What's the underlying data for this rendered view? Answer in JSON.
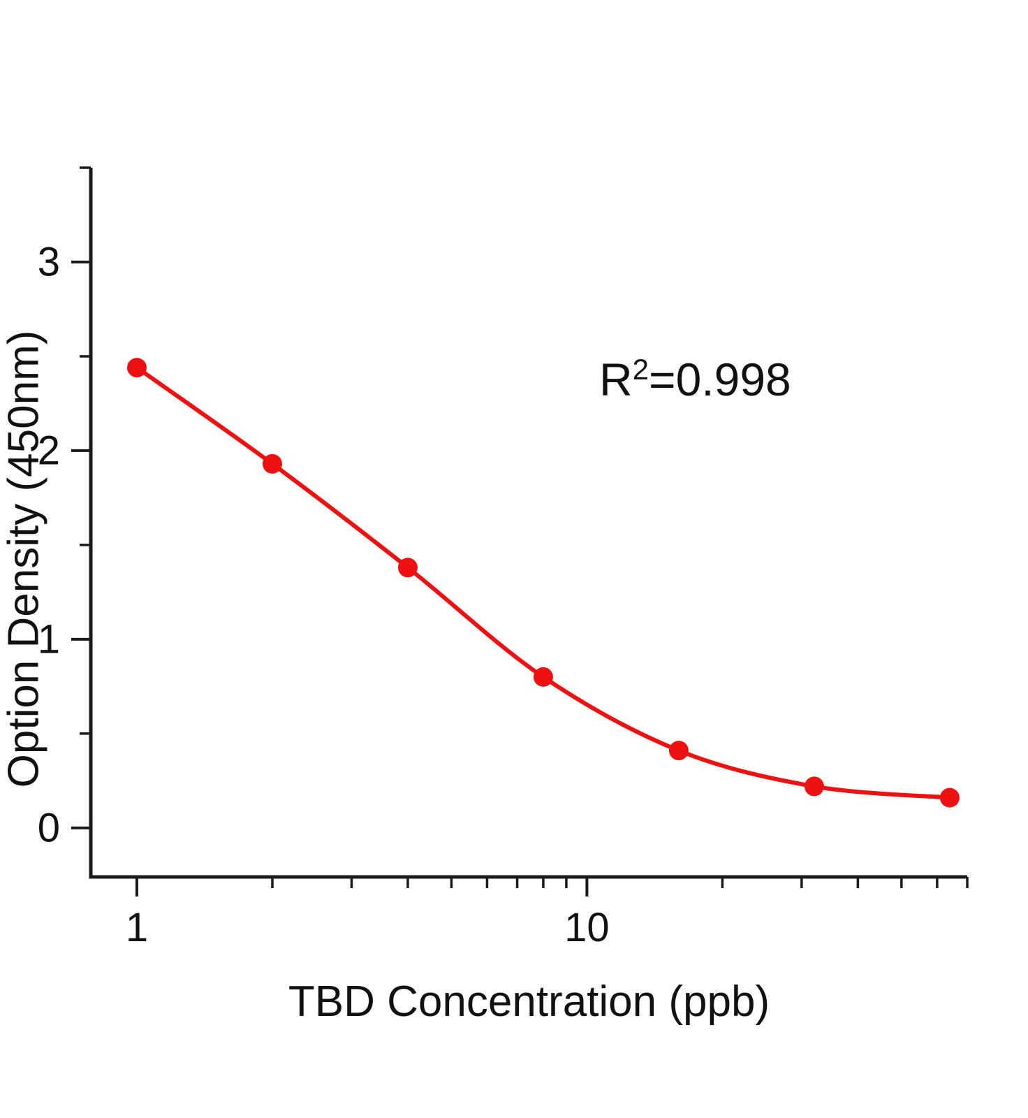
{
  "chart_data": {
    "type": "scatter",
    "title": "",
    "xlabel": "TBD Concentration  (ppb)",
    "ylabel": "Option Density  (450nm)",
    "xscale": "log",
    "grid": false,
    "x": [
      1,
      2,
      4,
      8,
      16,
      32,
      64
    ],
    "y": [
      2.44,
      1.93,
      1.38,
      0.8,
      0.41,
      0.22,
      0.16
    ],
    "fit_line": true,
    "xlim": [
      0.79,
      70
    ],
    "ylim": [
      -0.26,
      3.5
    ],
    "xticks": [
      1,
      10
    ],
    "xminor": [
      2,
      3,
      4,
      5,
      6,
      7,
      8,
      9,
      20,
      30,
      40,
      50,
      60,
      70
    ],
    "yticks": [
      0,
      1,
      2,
      3
    ],
    "yminor": [
      0.5,
      1.5,
      2.5,
      3.5
    ],
    "annotation": {
      "base": "R",
      "sup": "2",
      "rest": "=0.998"
    },
    "colors": {
      "series": "#ee1111",
      "axis": "#1a1a1a",
      "text": "#111111"
    }
  }
}
